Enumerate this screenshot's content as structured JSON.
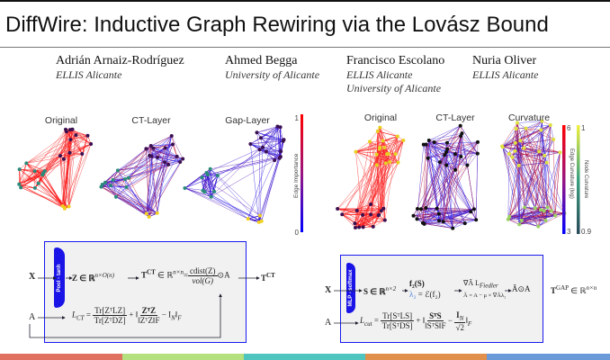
{
  "title": "DiffWire: Inductive Graph Rewiring via the Lovász Bound",
  "authors": [
    {
      "name": "Adrián Arnaiz-Rodríguez",
      "affiliations": [
        "ELLIS Alicante"
      ]
    },
    {
      "name": "Ahmed Begga",
      "affiliations": [
        "University of Alicante"
      ]
    },
    {
      "name": "Francisco Escolano",
      "affiliations": [
        "ELLIS Alicante",
        "University of Alicante"
      ]
    },
    {
      "name": "Nuria Oliver",
      "affiliations": [
        "ELLIS Alicante"
      ]
    }
  ],
  "figure_left": {
    "panels": [
      "Original",
      "CT-Layer",
      "Gap-Layer"
    ],
    "colorbar": {
      "label": "Edge Importance",
      "max": "1",
      "min": "0",
      "colors": [
        "#ff0000",
        "#0000ff"
      ]
    }
  },
  "figure_right": {
    "panels": [
      "Original",
      "CT-Layer",
      "Curvature"
    ],
    "edge_colorbar": {
      "label": "Edge Curvature (log)",
      "max": "6",
      "min": "3",
      "colors": [
        "#ff0000",
        "#0000ff"
      ]
    },
    "node_colorbar": {
      "label": "Node Curvature",
      "max": "1",
      "min": "0.9",
      "colors": [
        "#f0f040",
        "#2a4a5a"
      ]
    }
  },
  "ct_block": {
    "pool_label": "Pool - tanh",
    "x": "X",
    "a": "A",
    "z": "Z ∈ ℝ",
    "z_sup": "n×O(n)",
    "t": "T",
    "t_sup": "CT",
    "t_space": " ∈ ℝ",
    "t_space_sup": "n×n",
    "eq": "=",
    "frac_num": "cdist(Z)",
    "frac_den": "vol(G)",
    "hadamard": "⊙A",
    "out": "T",
    "out_sup": "CT",
    "loss_lhs": "L",
    "loss_sub": "CT",
    "loss_eq": " = ",
    "loss_num": "Tr[ZᵀLZ]",
    "loss_den": "Tr[ZᵀDZ]",
    "loss_plus": " + ‖",
    "loss_norm_num": "ZᵀZ",
    "loss_norm_den": "‖ZᵀZ‖F",
    "loss_minus": " − I",
    "loss_minus_sub": "N",
    "loss_close": "‖",
    "loss_close_sub": "F"
  },
  "gap_block": {
    "mlp_label": "MLP - softmax",
    "x": "X",
    "a": "A",
    "s": "S ∈ ℝ",
    "s_sup": "n×2",
    "f2": "f₂(S)",
    "lambda": "λ₂",
    "lambda_eq": " = ℰ(f₂)",
    "grad": "∇Ã L",
    "grad_sub": "Fiedler",
    "grad_update": "Ã = A − μ × ∇Ãλ₂",
    "result": "Ã⊙A",
    "out": "T",
    "out_sup": "GAP",
    "out_space": " ∈ ℝ",
    "out_space_sup": "n×n",
    "loss_lhs": "L",
    "loss_sub": "cut",
    "loss_eq": " = ",
    "loss_num": "Tr[SᵀLS]",
    "loss_den": "Tr[SᵀDS]",
    "loss_plus": " + ‖",
    "loss_norm_num": "SᵀS",
    "loss_norm_den": "‖SᵀS‖F",
    "loss_minus": " − ",
    "loss_in_num": "I",
    "loss_in_sub": "N",
    "loss_in_den": "√2",
    "loss_close": "‖",
    "loss_close_sub": "F"
  },
  "footer_colors": [
    "#e07060",
    "#b5e07e",
    "#4ec5be",
    "#e0904a",
    "#6a9ad8"
  ],
  "accent_color": "#1a14e6"
}
